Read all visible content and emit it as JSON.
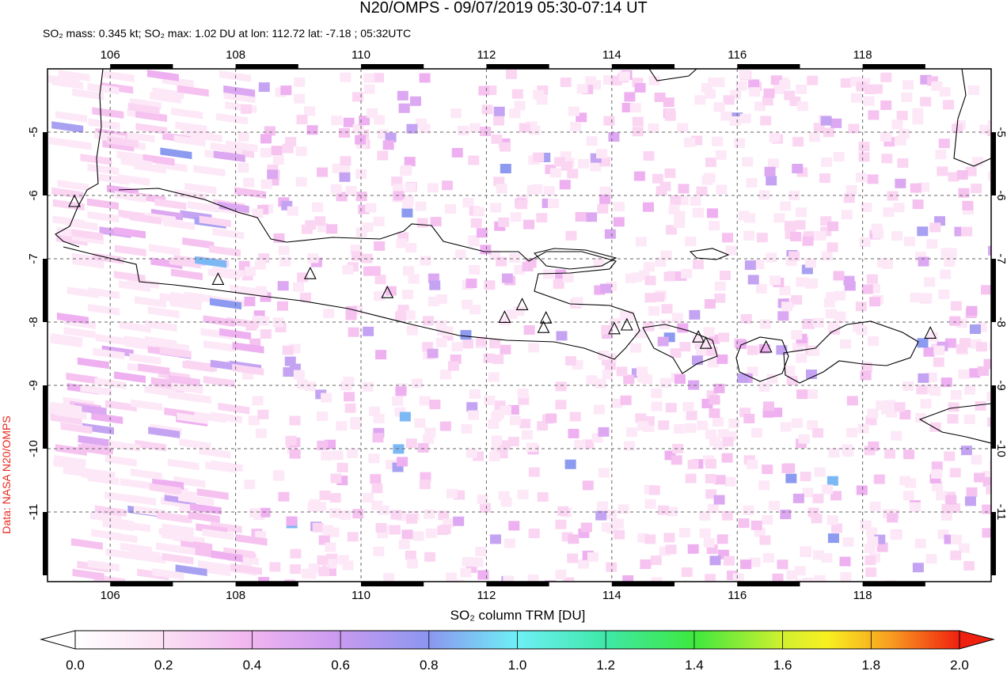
{
  "title": "N20/OMPS - 09/07/2019 05:30-07:14 UT",
  "subtitle": "SO₂ mass: 0.345 kt; SO₂ max: 1.02 DU at lon: 112.72 lat: -7.18 ; 05:32UTC",
  "side_label": "Data: NASA N20/OMPS",
  "map": {
    "xlim": [
      105.0,
      120.05
    ],
    "ylim": [
      -12.1,
      -4.0
    ],
    "xticks": [
      106,
      108,
      110,
      112,
      114,
      116,
      118
    ],
    "yticks": [
      -5,
      -6,
      -7,
      -8,
      -9,
      -10,
      -11
    ],
    "volcanoes": {
      "lon": [
        105.43,
        107.72,
        109.19,
        110.42,
        112.29,
        112.57,
        112.95,
        112.91,
        114.04,
        114.24,
        115.38,
        115.5,
        116.46,
        119.08
      ],
      "lat": [
        -6.1,
        -7.33,
        -7.24,
        -7.54,
        -7.93,
        -7.73,
        -7.94,
        -8.09,
        -8.11,
        -8.05,
        -8.24,
        -8.34,
        -8.4,
        -8.18
      ]
    }
  },
  "colorbar": {
    "label": "SO₂ column TRM [DU]",
    "lim": [
      0,
      2
    ],
    "ticks": [
      {
        "value": 0,
        "label": "0.0"
      },
      {
        "value": 0.2,
        "label": "0.2"
      },
      {
        "value": 0.4,
        "label": "0.4"
      },
      {
        "value": 0.6,
        "label": "0.6"
      },
      {
        "value": 0.8,
        "label": "0.8"
      },
      {
        "value": 1.0,
        "label": "1.0"
      },
      {
        "value": 1.2,
        "label": "1.2"
      },
      {
        "value": 1.4,
        "label": "1.4"
      },
      {
        "value": 1.6,
        "label": "1.6"
      },
      {
        "value": 1.8,
        "label": "1.8"
      },
      {
        "value": 2.0,
        "label": "2.0"
      }
    ]
  }
}
